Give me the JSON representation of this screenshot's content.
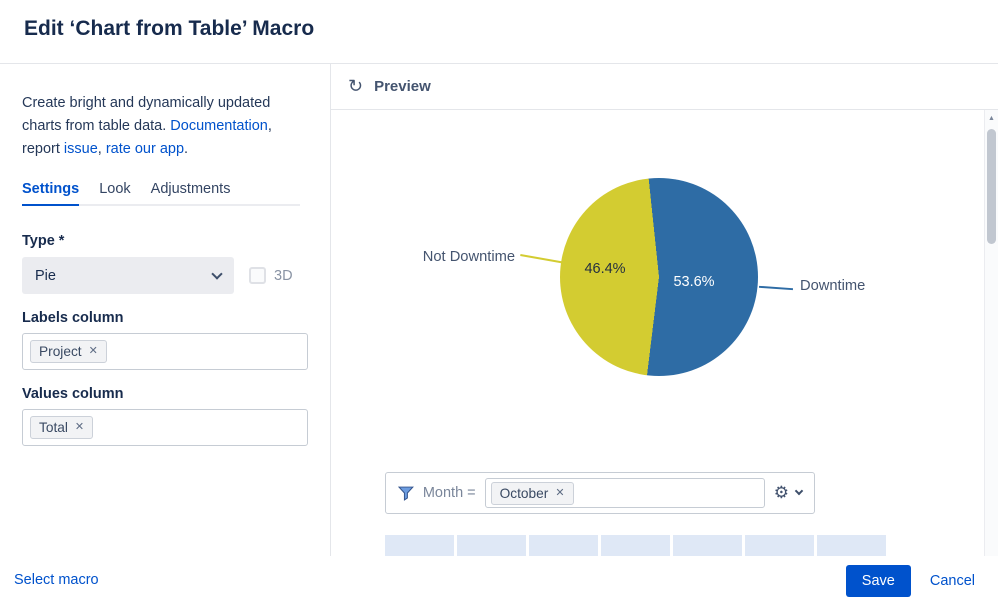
{
  "colors": {
    "accent": "#0052CC",
    "pie_blue": "#2e6ca5",
    "pie_yellow": "#d3cc31"
  },
  "icons": {
    "refresh": "↻",
    "gear": "⚙",
    "close": "✕",
    "scroll_up": "▲"
  },
  "header": {
    "title": "Edit ‘Chart from Table’ Macro"
  },
  "sidebar": {
    "intro": {
      "text1": "Create bright and dynamically updated charts from table data. ",
      "link_documentation": "Documentation",
      "text2": ", report ",
      "link_issue": "issue",
      "text3": ", ",
      "link_rate": "rate our app",
      "text4": "."
    },
    "tabs": [
      {
        "label": "Settings"
      },
      {
        "label": "Look"
      },
      {
        "label": "Adjustments"
      }
    ],
    "type_field": {
      "label": "Type *",
      "value": "Pie",
      "checkbox_label": "3D"
    },
    "labels_field": {
      "label": "Labels column",
      "tag": "Project"
    },
    "values_field": {
      "label": "Values column",
      "tag": "Total"
    }
  },
  "preview": {
    "title": "Preview",
    "filter": {
      "label": "Month =",
      "tag": "October"
    },
    "table_columns": 7
  },
  "chart_data": {
    "type": "pie",
    "labels": [
      "Downtime",
      "Not Downtime"
    ],
    "values": [
      53.6,
      46.4
    ],
    "value_labels": [
      "53.6%",
      "46.4%"
    ],
    "colors": [
      "#2e6ca5",
      "#d3cc31"
    ],
    "start_angle_deg": -6,
    "legend_position": "none",
    "title": ""
  },
  "footer": {
    "select_macro": "Select macro",
    "save": "Save",
    "cancel": "Cancel"
  }
}
